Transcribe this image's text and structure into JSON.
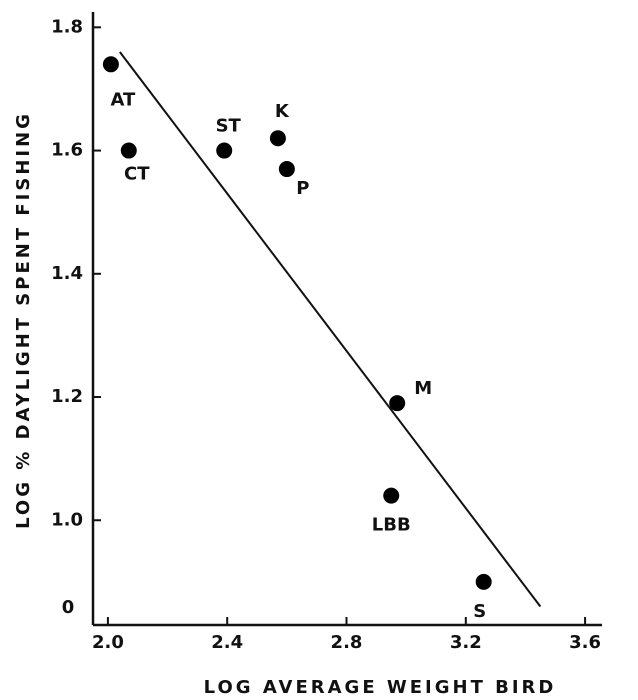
{
  "chart_data": {
    "type": "scatter",
    "xlabel": "LOG AVERAGE WEIGHT BIRD",
    "ylabel": "LOG % DAYLIGHT SPENT FISHING",
    "labels": [
      "AT",
      "CT",
      "ST",
      "K",
      "P",
      "M",
      "LBB",
      "S"
    ],
    "x": [
      2.01,
      2.07,
      2.39,
      2.57,
      2.6,
      2.97,
      2.95,
      3.26
    ],
    "y": [
      1.74,
      1.6,
      1.6,
      1.62,
      1.57,
      1.19,
      1.04,
      0.9
    ],
    "color": "#000000",
    "fit_line": {
      "x": [
        2.04,
        3.45
      ],
      "y": [
        1.76,
        0.86
      ]
    },
    "xlim": [
      1.95,
      3.65
    ],
    "ylim": [
      0.83,
      1.82
    ],
    "xticks": [
      {
        "value": 2,
        "label": "2.0"
      },
      2.4,
      2.8,
      3.2,
      3.6
    ],
    "yticks": [
      {
        "value": 1,
        "label": "1.0"
      },
      1.2,
      1.4,
      1.6,
      1.8
    ],
    "origin_label": "0"
  }
}
